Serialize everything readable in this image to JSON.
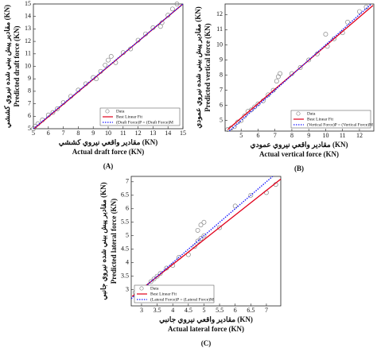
{
  "chart_data": [
    {
      "type": "scatter",
      "panel": "(A)",
      "xlabel": "Actual draft force (KN)",
      "xlabel_fa": "(KN) مقادير واقعي نيروي كششي",
      "ylabel": "Predicted draft force (KN)",
      "ylabel_fa": "(KN) مقادير پيش بيني شده نيروي كششي",
      "xlim": [
        5,
        15
      ],
      "ylim": [
        5,
        15
      ],
      "xticks": [
        5,
        6,
        7,
        8,
        9,
        10,
        11,
        12,
        13,
        14,
        15
      ],
      "yticks": [
        5,
        6,
        7,
        8,
        9,
        10,
        11,
        12,
        13,
        14,
        15
      ],
      "legend": "lower right",
      "series": [
        {
          "name": "Data",
          "type": "scatter",
          "color": "#888888",
          "x": [
            5,
            5.1,
            5.3,
            5.6,
            6,
            6.3,
            6.6,
            7,
            7.5,
            8,
            8.5,
            9,
            9.2,
            9.5,
            9.8,
            10,
            10.2,
            10.5,
            11,
            11.5,
            12,
            12.5,
            13,
            13.5,
            13.6,
            14,
            14.3,
            14.6
          ],
          "y": [
            5,
            5.2,
            5.4,
            5.7,
            6.1,
            6.3,
            6.6,
            7.1,
            7.6,
            8.1,
            8.6,
            9.1,
            9,
            9.6,
            10.1,
            10.5,
            10.8,
            10.3,
            11.1,
            11.4,
            12.1,
            12.6,
            13.1,
            13.2,
            13.5,
            14.1,
            14.6,
            15
          ]
        },
        {
          "name": "Best Linear Fit",
          "type": "line",
          "color": "#e0001b",
          "x": [
            5,
            15
          ],
          "y": [
            4.95,
            15
          ]
        },
        {
          "name": "(Draft Force)P = (Draft Force)M",
          "type": "line",
          "dotted": true,
          "color": "#1a1aff",
          "x": [
            5,
            15
          ],
          "y": [
            5,
            15
          ]
        }
      ]
    },
    {
      "type": "scatter",
      "panel": "(B)",
      "xlabel": "Actual vertical force (KN)",
      "xlabel_fa": "(KN) مقادير واقعي نيروي عمودي",
      "ylabel": "Predicted vertical force (KN)",
      "ylabel_fa": "(KN) مقادير پيش بيني شده نيروي عمودي",
      "xlim": [
        4.05,
        12.85
      ],
      "ylim": [
        4.3,
        12.7
      ],
      "xticks": [
        5,
        6,
        7,
        8,
        9,
        10,
        11,
        12
      ],
      "yticks": [
        5,
        6,
        7,
        8,
        9,
        10,
        11,
        12
      ],
      "legend": "lower right",
      "series": [
        {
          "name": "Data",
          "type": "scatter",
          "color": "#888888",
          "x": [
            4.2,
            4.4,
            4.6,
            4.8,
            5,
            5.2,
            5.4,
            5.6,
            5.8,
            6,
            6.3,
            6.6,
            6.9,
            7.1,
            7.2,
            7.3,
            8,
            8.5,
            9,
            9.5,
            10,
            10.1,
            10.5,
            11,
            11.3,
            12,
            12.4
          ],
          "y": [
            4.4,
            4.5,
            4.6,
            4.9,
            5,
            5.3,
            5.6,
            5.7,
            5.9,
            6.1,
            6.3,
            6.7,
            7,
            7.6,
            7.9,
            8.1,
            8.1,
            8.5,
            9,
            9.4,
            10.7,
            9.9,
            10.4,
            10.8,
            11.5,
            12.2,
            12.5
          ]
        },
        {
          "name": "Best Linear Fit",
          "type": "line",
          "color": "#e0001b",
          "x": [
            4.2,
            12.8
          ],
          "y": [
            4.4,
            12.6
          ]
        },
        {
          "name": "(Vertical Force)P = (Vertical Force)M",
          "type": "line",
          "dotted": true,
          "color": "#1a1aff",
          "x": [
            4.3,
            12.7
          ],
          "y": [
            4.3,
            12.7
          ]
        }
      ]
    },
    {
      "type": "scatter",
      "panel": "(C)",
      "xlabel": "Actual lateral force (KN)",
      "xlabel_fa": "(KN) مقادير واقعي نيروي جانبي",
      "ylabel": "Predicted lateral force (KN)",
      "ylabel_fa": "(KN) مقادير پيش بيني شده نيروي جانبي",
      "xlim": [
        2.67,
        7.46
      ],
      "ylim": [
        2.4,
        7.2
      ],
      "xticks": [
        3,
        3.5,
        4,
        4.5,
        5,
        5.5,
        6,
        6.5,
        7
      ],
      "yticks": [
        3,
        3.5,
        4,
        4.5,
        5,
        5.5,
        6,
        6.5,
        7
      ],
      "legend": "lower left",
      "series": [
        {
          "name": "Data",
          "type": "scatter",
          "color": "#888888",
          "x": [
            2.8,
            3,
            3.2,
            3.3,
            3.4,
            3.5,
            3.6,
            3.8,
            4,
            4.2,
            4.5,
            4.7,
            4.8,
            4.9,
            5,
            4.8,
            4.9,
            5,
            5.5,
            6,
            6.5,
            7,
            7.3
          ],
          "y": [
            2.9,
            3,
            3.1,
            3.3,
            3.4,
            3.5,
            3.6,
            3.8,
            3.9,
            4.2,
            4.3,
            4.6,
            4.8,
            4.9,
            5,
            5.2,
            5.4,
            5.5,
            5.3,
            6.1,
            6.5,
            6.6,
            6.9
          ]
        },
        {
          "name": "Best Linear Fit",
          "type": "line",
          "color": "#e0001b",
          "x": [
            2.7,
            7.46
          ],
          "y": [
            2.75,
            7.1
          ]
        },
        {
          "name": "(Lateral Force)P = (Lateral Force)M",
          "type": "line",
          "dotted": true,
          "color": "#1a1aff",
          "x": [
            2.67,
            7.2
          ],
          "y": [
            2.67,
            7.2
          ]
        }
      ]
    }
  ]
}
